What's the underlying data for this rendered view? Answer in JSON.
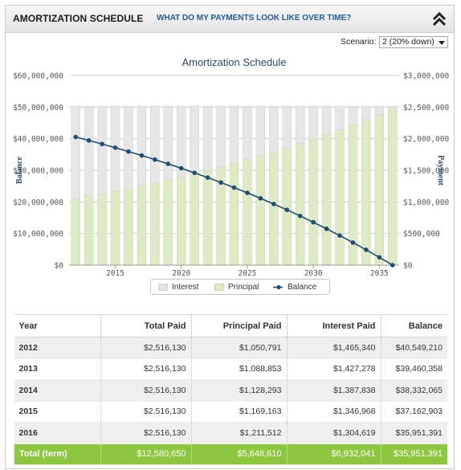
{
  "header": {
    "title": "AMORTIZATION SCHEDULE",
    "link": "WHAT DO MY PAYMENTS LOOK LIKE OVER TIME?",
    "collapse_icon": "double-chevron-up-icon"
  },
  "scenario": {
    "label": "Scenario:",
    "selected": "2 (20% down)"
  },
  "legend": {
    "interest": "Interest",
    "principal": "Principal",
    "balance": "Balance"
  },
  "colors": {
    "interest": "#e4e4e4",
    "principal": "#ddebc4",
    "balance": "#1f4e72",
    "total_row": "#8dc63f",
    "link": "#1f5c98"
  },
  "chart_data": {
    "type": "bar",
    "title": "Amortization Schedule",
    "ylabel": "Balance",
    "y2label": "Payment",
    "ylim": [
      0,
      60000000
    ],
    "y2lim": [
      0,
      3000000
    ],
    "yticks": [
      "$0",
      "$10,000,000",
      "$20,000,000",
      "$30,000,000",
      "$40,000,000",
      "$50,000,000",
      "$60,000,000"
    ],
    "y2ticks": [
      "$0",
      "$500,000",
      "$1,000,000",
      "$1,500,000",
      "$2,000,000",
      "$2,500,000",
      "$3,000,000"
    ],
    "xticks": [
      "2015",
      "2020",
      "2025",
      "2030",
      "2035"
    ],
    "grid": true,
    "legend_position": "bottom-center",
    "categories": [
      2012,
      2013,
      2014,
      2015,
      2016,
      2017,
      2018,
      2019,
      2020,
      2021,
      2022,
      2023,
      2024,
      2025,
      2026,
      2027,
      2028,
      2029,
      2030,
      2031,
      2032,
      2033,
      2034,
      2035,
      2036
    ],
    "series": [
      {
        "name": "Principal",
        "axis": "right",
        "stacked": true,
        "values": [
          1050791,
          1088853,
          1128293,
          1169163,
          1211512,
          1255400,
          1300900,
          1348000,
          1396800,
          1447400,
          1499800,
          1554100,
          1610400,
          1668700,
          1729200,
          1791800,
          1856700,
          1924000,
          1993700,
          2065900,
          2140700,
          2218300,
          2298600,
          2381800,
          2468100
        ]
      },
      {
        "name": "Interest",
        "axis": "right",
        "stacked": true,
        "values": [
          1465340,
          1427278,
          1387838,
          1346968,
          1304619,
          1260730,
          1215230,
          1168130,
          1119330,
          1068730,
          1016330,
          962030,
          905730,
          847430,
          786930,
          724330,
          659430,
          592130,
          522430,
          450230,
          375430,
          297830,
          217530,
          134330,
          48030
        ]
      },
      {
        "name": "Balance",
        "axis": "left",
        "type": "line",
        "values": [
          40549210,
          39460358,
          38332065,
          37162903,
          35951391,
          34696000,
          33395100,
          32047100,
          30650300,
          29202900,
          27703100,
          26149000,
          24538600,
          22869900,
          21140700,
          19348900,
          17492200,
          15568200,
          13574500,
          11508600,
          9367900,
          7149600,
          4851000,
          2469200,
          0
        ]
      }
    ]
  },
  "table": {
    "headers": [
      "Year",
      "Total Paid",
      "Principal Paid",
      "Interest Paid",
      "Balance"
    ],
    "rows": [
      [
        "2012",
        "$2,516,130",
        "$1,050,791",
        "$1,465,340",
        "$40,549,210"
      ],
      [
        "2013",
        "$2,516,130",
        "$1,088,853",
        "$1,427,278",
        "$39,460,358"
      ],
      [
        "2014",
        "$2,516,130",
        "$1,128,293",
        "$1,387,838",
        "$38,332,065"
      ],
      [
        "2015",
        "$2,516,130",
        "$1,169,163",
        "$1,346,968",
        "$37,162,903"
      ],
      [
        "2016",
        "$2,516,130",
        "$1,211,512",
        "$1,304,619",
        "$35,951,391"
      ]
    ],
    "total": [
      "Total (term)",
      "$12,580,650",
      "$5,648,610",
      "$6,932,041",
      "$35,951,391"
    ]
  }
}
